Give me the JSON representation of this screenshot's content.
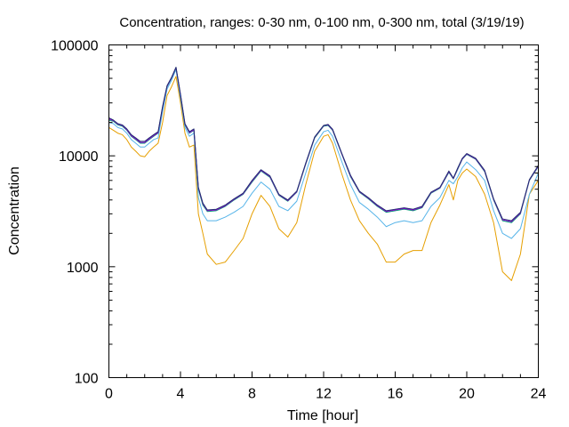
{
  "chart_data": {
    "type": "line",
    "title": "Concentration, ranges: 0-30 nm, 0-100 nm, 0-300 nm, total (3/19/19)",
    "xlabel": "Time [hour]",
    "ylabel": "Concentration",
    "xlim": [
      0,
      24
    ],
    "ylim": [
      100,
      100000
    ],
    "yscale": "log",
    "xticks": [
      0,
      4,
      8,
      12,
      16,
      20,
      24
    ],
    "xtick_labels": [
      "0",
      "4",
      "8",
      "12",
      "16",
      "20",
      "24"
    ],
    "yticks": [
      100,
      1000,
      10000,
      100000
    ],
    "ytick_labels": [
      "100",
      "1000",
      "10000",
      "100000"
    ],
    "grid": false,
    "legend": "none",
    "x": [
      0,
      0.25,
      0.5,
      0.75,
      1,
      1.25,
      1.5,
      1.75,
      2,
      2.25,
      2.5,
      2.75,
      3,
      3.25,
      3.5,
      3.75,
      4,
      4.25,
      4.5,
      4.75,
      5,
      5.25,
      5.5,
      6,
      6.5,
      7,
      7.5,
      8,
      8.5,
      9,
      9.5,
      10,
      10.5,
      11,
      11.5,
      12,
      12.25,
      12.5,
      13,
      13.5,
      14,
      14.5,
      15,
      15.5,
      16,
      16.5,
      17,
      17.5,
      18,
      18.5,
      19,
      19.25,
      19.5,
      19.75,
      20,
      20.5,
      21,
      21.5,
      22,
      22.5,
      23,
      23.5,
      24
    ],
    "series": [
      {
        "color": "#e69f00",
        "values": [
          18000,
          17000,
          16000,
          15500,
          14000,
          12000,
          11000,
          10000,
          9800,
          11000,
          12000,
          13000,
          20000,
          35000,
          42000,
          52000,
          30000,
          16000,
          12000,
          12500,
          3000,
          2000,
          1300,
          1050,
          1100,
          1400,
          1800,
          3000,
          4400,
          3500,
          2200,
          1850,
          2500,
          5500,
          11000,
          15000,
          15500,
          13000,
          7000,
          4000,
          2600,
          2000,
          1600,
          1100,
          1100,
          1300,
          1400,
          1400,
          2500,
          3600,
          5500,
          4000,
          6000,
          7000,
          7600,
          6500,
          4500,
          2500,
          900,
          750,
          1300,
          4500,
          6000
        ]
      },
      {
        "color": "#56b4e9",
        "values": [
          20000,
          19500,
          18000,
          17500,
          16000,
          14000,
          13000,
          12000,
          12000,
          13000,
          14000,
          14500,
          25000,
          40000,
          48000,
          60000,
          33000,
          18000,
          15000,
          16000,
          4200,
          3000,
          2600,
          2600,
          2800,
          3100,
          3500,
          4600,
          5800,
          5000,
          3500,
          3200,
          3900,
          7000,
          12500,
          16500,
          17000,
          15000,
          9000,
          5500,
          3800,
          3300,
          2800,
          2300,
          2500,
          2600,
          2500,
          2600,
          3500,
          4200,
          6000,
          5600,
          6500,
          7800,
          8800,
          7500,
          6000,
          3200,
          2000,
          1800,
          2200,
          4500,
          7000
        ]
      },
      {
        "color": "#009e73",
        "values": [
          21000,
          20500,
          19000,
          18500,
          17000,
          15000,
          14000,
          13000,
          13000,
          14000,
          15000,
          16000,
          27000,
          42000,
          50000,
          62000,
          35000,
          19000,
          16000,
          17000,
          5000,
          3600,
          3150,
          3200,
          3500,
          4000,
          4500,
          5800,
          7300,
          6400,
          4400,
          3900,
          4700,
          8400,
          14500,
          18500,
          18800,
          17000,
          10500,
          6500,
          4700,
          4100,
          3500,
          3100,
          3200,
          3300,
          3200,
          3400,
          4600,
          5100,
          7100,
          6200,
          7600,
          9300,
          10300,
          9300,
          7200,
          4000,
          2600,
          2500,
          3000,
          6000,
          8000
        ]
      },
      {
        "color": "#9400d3",
        "values": [
          21500,
          20800,
          19300,
          18800,
          17200,
          15200,
          14200,
          13200,
          13200,
          14200,
          15200,
          16200,
          27500,
          42500,
          50500,
          62500,
          35500,
          19300,
          16200,
          17200,
          5100,
          3700,
          3200,
          3250,
          3550,
          4050,
          4550,
          5900,
          7400,
          6500,
          4450,
          3950,
          4750,
          8500,
          14700,
          18700,
          19000,
          17200,
          10600,
          6600,
          4750,
          4150,
          3550,
          3150,
          3250,
          3350,
          3250,
          3450,
          4650,
          5150,
          7200,
          6250,
          7700,
          9400,
          10400,
          9400,
          7300,
          4050,
          2650,
          2550,
          3050,
          6050,
          8100
        ]
      },
      {
        "color": "#1f2f6e",
        "values": [
          22000,
          21000,
          19500,
          19000,
          17500,
          15500,
          14500,
          13500,
          13500,
          14500,
          15500,
          16500,
          28000,
          43000,
          51000,
          63000,
          36000,
          19500,
          16500,
          17500,
          5200,
          3750,
          3250,
          3300,
          3600,
          4100,
          4600,
          6000,
          7500,
          6600,
          4500,
          4000,
          4800,
          8600,
          14800,
          18800,
          19200,
          17400,
          10700,
          6700,
          4800,
          4200,
          3600,
          3200,
          3300,
          3400,
          3300,
          3500,
          4700,
          5200,
          7300,
          6300,
          7800,
          9500,
          10500,
          9500,
          7400,
          4100,
          2700,
          2600,
          3100,
          6100,
          8200
        ]
      }
    ]
  }
}
